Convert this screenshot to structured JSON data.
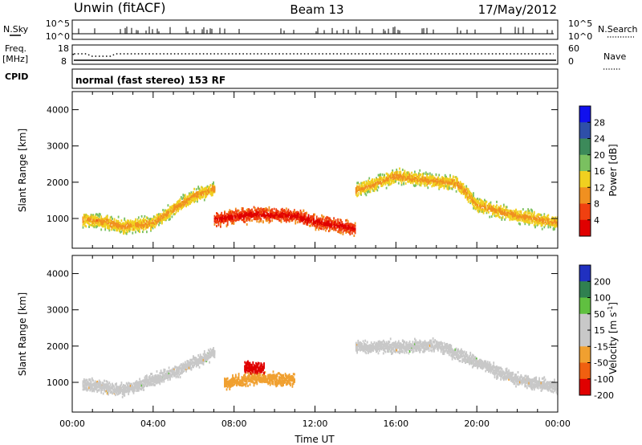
{
  "header": {
    "station": "Unwin (fitACF)",
    "beam": "Beam 13",
    "date": "17/May/2012"
  },
  "top_panels": {
    "nsky_label": "N.Sky",
    "nsky_ticks": [
      "10^5",
      "10^0"
    ],
    "nsearch_label": "N.Search",
    "nsearch_ticks": [
      "10^5",
      "10^0"
    ],
    "freq_label": "Freq.",
    "freq_unit": "[MHz]",
    "freq_ticks": [
      "18",
      "8"
    ],
    "nave_label": "Nave",
    "nave_ticks": [
      "60",
      "0"
    ],
    "cpid_label": "CPID",
    "cpid_value": "normal (fast stereo) 153 RF"
  },
  "chart_data": [
    {
      "type": "heatmap",
      "name": "power",
      "ylabel": "Slant Range [km]",
      "xlabel": "",
      "xlim": [
        "00:00",
        "24:00"
      ],
      "ylim": [
        180,
        4500
      ],
      "yticks": [
        "1000",
        "2000",
        "3000",
        "4000"
      ],
      "colorbar": {
        "label": "Power [dB]",
        "ticks": [
          "4",
          "8",
          "12",
          "16",
          "20",
          "24",
          "28"
        ],
        "colors": [
          "#1010ee",
          "#2e4fa8",
          "#3c8a5a",
          "#7ac060",
          "#f0d020",
          "#f09020",
          "#f04010",
          "#e00000"
        ]
      },
      "echo_bands": [
        {
          "t": [
            0.5,
            1.5,
            2.5,
            4.0,
            5.0,
            6.0,
            7.0
          ],
          "range": [
            1000,
            950,
            800,
            900,
            1300,
            1650,
            1850
          ],
          "power_db": 20
        },
        {
          "t": [
            7.0,
            9.0,
            11.0,
            12.0,
            14.0
          ],
          "range": [
            1000,
            1150,
            1100,
            950,
            750
          ],
          "power_db": 28
        },
        {
          "t": [
            14.0,
            16.0,
            18.0,
            19.0,
            20.0,
            22.0,
            24.0
          ],
          "range": [
            1800,
            2200,
            2050,
            2000,
            1400,
            1100,
            900
          ],
          "power_db": 20
        }
      ]
    },
    {
      "type": "heatmap",
      "name": "velocity",
      "ylabel": "Slant Range [km]",
      "xlabel": "Time UT",
      "xlim": [
        "00:00",
        "24:00"
      ],
      "ylim": [
        180,
        4500
      ],
      "xticks": [
        "00:00",
        "04:00",
        "08:00",
        "12:00",
        "16:00",
        "20:00",
        "00:00"
      ],
      "yticks": [
        "1000",
        "2000",
        "3000",
        "4000"
      ],
      "colorbar": {
        "label": "Velocity [m s",
        "label_sup": "-1",
        "label_end": "]",
        "ticks": [
          "200",
          "100",
          "50",
          "15",
          "-15",
          "-50",
          "-100",
          "-200"
        ],
        "colors": [
          "#2030c0",
          "#308050",
          "#60c040",
          "#c8c8c8",
          "#c8c8c8",
          "#f0a030",
          "#f06010",
          "#e00000"
        ]
      },
      "echo_bands": [
        {
          "t": [
            0.5,
            2.5,
            5.0,
            7.0
          ],
          "range": [
            1000,
            800,
            1300,
            1850
          ],
          "velocity": 0
        },
        {
          "t": [
            7.5,
            9.0,
            11.0
          ],
          "range": [
            1000,
            1150,
            1100
          ],
          "velocity": -40
        },
        {
          "t": [
            8.5,
            9.5
          ],
          "range": [
            1450,
            1400
          ],
          "velocity": -150
        },
        {
          "t": [
            14.0,
            18.0,
            22.0,
            24.0
          ],
          "range": [
            2000,
            2050,
            1100,
            900
          ],
          "velocity": 0
        }
      ]
    }
  ]
}
